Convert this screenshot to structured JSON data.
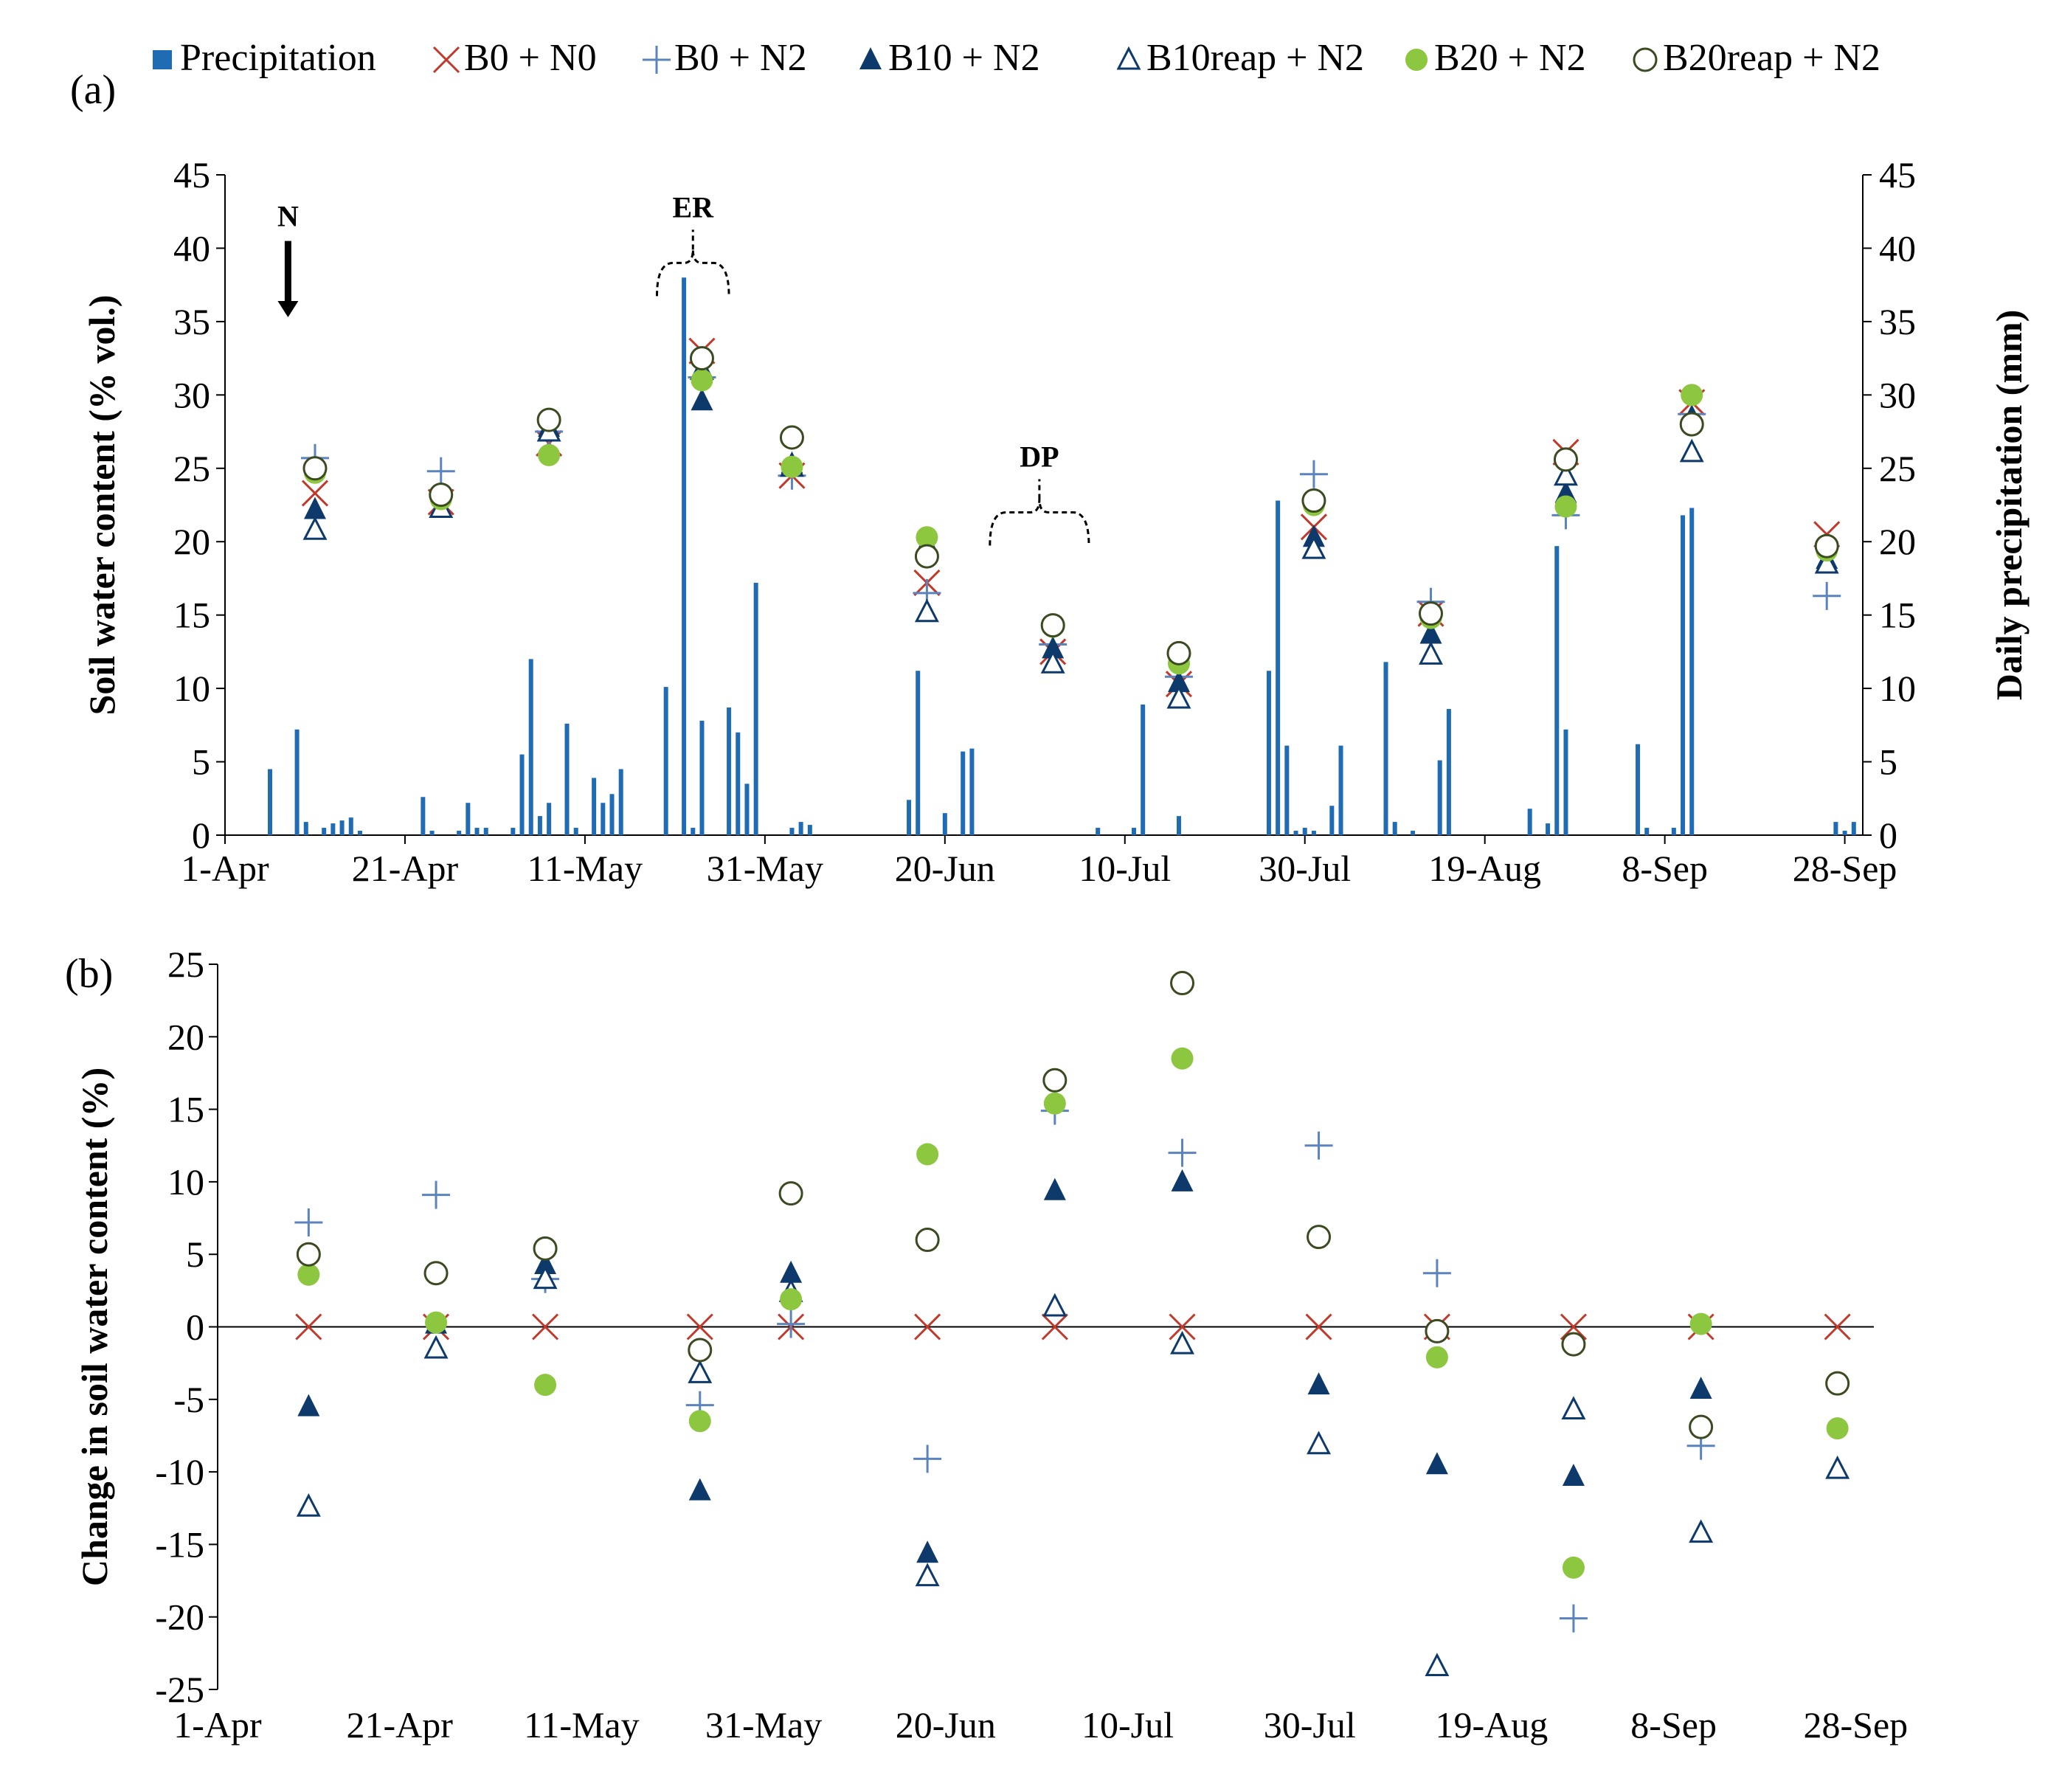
{
  "colors": {
    "precipitation": "#1F6BB4",
    "B0+N0": "#C0392B",
    "B0+N2": "#5B84BF",
    "B10+N2": "#0D3A6B",
    "B10reap+N2": "#0D3A6B",
    "B20+N2": "#8DC63F",
    "B20reap+N2": "#3B4A20",
    "axis": "#000000"
  },
  "chart_data": [
    {
      "panel": "(a)",
      "type": "bar+scatter",
      "ylabel_left": "Soil water content (% vol.)",
      "ylabel_right": "Daily precipitation (mm)",
      "ylim": [
        0,
        45
      ],
      "yticks": [
        "0",
        "5",
        "10",
        "15",
        "20",
        "25",
        "30",
        "35",
        "40",
        "45"
      ],
      "xlim_day": [
        0,
        182
      ],
      "xticks": [
        {
          "day": 0,
          "label": "1-Apr"
        },
        {
          "day": 20,
          "label": "21-Apr"
        },
        {
          "day": 40,
          "label": "11-May"
        },
        {
          "day": 60,
          "label": "31-May"
        },
        {
          "day": 80,
          "label": "20-Jun"
        },
        {
          "day": 100,
          "label": "10-Jul"
        },
        {
          "day": 120,
          "label": "30-Jul"
        },
        {
          "day": 140,
          "label": "19-Aug"
        },
        {
          "day": 160,
          "label": "8-Sep"
        },
        {
          "day": 180,
          "label": "28-Sep"
        }
      ],
      "legend": [
        {
          "key": "Precipitation",
          "label": "Precipitation",
          "marker": "square"
        },
        {
          "key": "B0+N0",
          "label": "B0 + N0",
          "marker": "x"
        },
        {
          "key": "B0+N2",
          "label": "B0 + N2",
          "marker": "plus"
        },
        {
          "key": "B10+N2",
          "label": "B10 + N2",
          "marker": "tri-filled"
        },
        {
          "key": "B10reap+N2",
          "label": "B10reap + N2",
          "marker": "tri-open"
        },
        {
          "key": "B20+N2",
          "label": "B20 + N2",
          "marker": "circle-filled"
        },
        {
          "key": "B20reap+N2",
          "label": "B20reap + N2",
          "marker": "circle-open"
        }
      ],
      "annotations": [
        {
          "label": "N",
          "day": 7,
          "kind": "arrow",
          "value": 42
        },
        {
          "label": "ER",
          "day": 51,
          "kind": "bracket",
          "span": [
            48,
            56
          ],
          "value": 39
        },
        {
          "label": "DP",
          "day": 91,
          "kind": "bracket",
          "span": [
            85,
            96
          ],
          "value": 22
        }
      ],
      "precipitation": [
        {
          "day": 5,
          "mm": 4.5
        },
        {
          "day": 8,
          "mm": 7.2
        },
        {
          "day": 9,
          "mm": 0.9
        },
        {
          "day": 11,
          "mm": 0.5
        },
        {
          "day": 12,
          "mm": 0.8
        },
        {
          "day": 13,
          "mm": 1.0
        },
        {
          "day": 14,
          "mm": 1.2
        },
        {
          "day": 15,
          "mm": 0.3
        },
        {
          "day": 22,
          "mm": 2.6
        },
        {
          "day": 23,
          "mm": 0.3
        },
        {
          "day": 26,
          "mm": 0.3
        },
        {
          "day": 27,
          "mm": 2.2
        },
        {
          "day": 28,
          "mm": 0.5
        },
        {
          "day": 29,
          "mm": 0.5
        },
        {
          "day": 32,
          "mm": 0.5
        },
        {
          "day": 33,
          "mm": 5.5
        },
        {
          "day": 34,
          "mm": 12.0
        },
        {
          "day": 35,
          "mm": 1.3
        },
        {
          "day": 36,
          "mm": 2.2
        },
        {
          "day": 38,
          "mm": 7.6
        },
        {
          "day": 39,
          "mm": 0.5
        },
        {
          "day": 41,
          "mm": 3.9
        },
        {
          "day": 42,
          "mm": 2.2
        },
        {
          "day": 43,
          "mm": 2.8
        },
        {
          "day": 44,
          "mm": 4.5
        },
        {
          "day": 49,
          "mm": 10.1
        },
        {
          "day": 51,
          "mm": 38.0
        },
        {
          "day": 52,
          "mm": 0.5
        },
        {
          "day": 53,
          "mm": 7.8
        },
        {
          "day": 56,
          "mm": 8.7
        },
        {
          "day": 57,
          "mm": 7.0
        },
        {
          "day": 58,
          "mm": 3.5
        },
        {
          "day": 59,
          "mm": 17.2
        },
        {
          "day": 63,
          "mm": 0.5
        },
        {
          "day": 64,
          "mm": 0.9
        },
        {
          "day": 65,
          "mm": 0.7
        },
        {
          "day": 76,
          "mm": 2.4
        },
        {
          "day": 77,
          "mm": 11.2
        },
        {
          "day": 80,
          "mm": 1.5
        },
        {
          "day": 82,
          "mm": 5.7
        },
        {
          "day": 83,
          "mm": 5.9
        },
        {
          "day": 97,
          "mm": 0.5
        },
        {
          "day": 101,
          "mm": 0.5
        },
        {
          "day": 102,
          "mm": 8.9
        },
        {
          "day": 106,
          "mm": 1.3
        },
        {
          "day": 116,
          "mm": 11.2
        },
        {
          "day": 117,
          "mm": 22.8
        },
        {
          "day": 118,
          "mm": 6.1
        },
        {
          "day": 119,
          "mm": 0.3
        },
        {
          "day": 120,
          "mm": 0.5
        },
        {
          "day": 121,
          "mm": 0.3
        },
        {
          "day": 123,
          "mm": 2.0
        },
        {
          "day": 124,
          "mm": 6.1
        },
        {
          "day": 129,
          "mm": 11.8
        },
        {
          "day": 130,
          "mm": 0.9
        },
        {
          "day": 132,
          "mm": 0.3
        },
        {
          "day": 135,
          "mm": 5.1
        },
        {
          "day": 136,
          "mm": 8.6
        },
        {
          "day": 145,
          "mm": 1.8
        },
        {
          "day": 147,
          "mm": 0.8
        },
        {
          "day": 148,
          "mm": 19.7
        },
        {
          "day": 149,
          "mm": 7.2
        },
        {
          "day": 157,
          "mm": 6.2
        },
        {
          "day": 158,
          "mm": 0.5
        },
        {
          "day": 161,
          "mm": 0.5
        },
        {
          "day": 162,
          "mm": 21.8
        },
        {
          "day": 163,
          "mm": 22.3
        },
        {
          "day": 179,
          "mm": 0.9
        },
        {
          "day": 180,
          "mm": 0.3
        },
        {
          "day": 181,
          "mm": 0.9
        }
      ],
      "dates": [
        10,
        24,
        36,
        53,
        63,
        78,
        92,
        106,
        121,
        134,
        149,
        163,
        178
      ],
      "series": [
        {
          "key": "B0+N0",
          "values": [
            23.3,
            22.7,
            26.7,
            33.0,
            24.5,
            17.2,
            12.5,
            10.3,
            21.0,
            15.1,
            26.1,
            29.5,
            20.5
          ]
        },
        {
          "key": "B0+N2",
          "values": [
            25.7,
            24.8,
            27.5,
            31.2,
            24.5,
            16.5,
            13.0,
            10.8,
            24.6,
            15.9,
            21.8,
            28.7,
            16.3
          ]
        },
        {
          "key": "B10+N2",
          "values": [
            22.2,
            22.4,
            27.8,
            29.6,
            25.3,
            19.9,
            12.7,
            10.4,
            20.3,
            13.7,
            23.3,
            28.5,
            18.8
          ]
        },
        {
          "key": "B10reap+N2",
          "values": [
            20.8,
            22.3,
            27.5,
            31.7,
            25.1,
            15.2,
            11.7,
            9.3,
            19.5,
            12.3,
            24.5,
            26.1,
            18.5
          ]
        },
        {
          "key": "B20+N2",
          "values": [
            24.7,
            22.9,
            25.9,
            31.0,
            25.1,
            20.3,
            14.2,
            11.7,
            22.5,
            14.8,
            22.4,
            30.0,
            19.4
          ]
        },
        {
          "key": "B20reap+N2",
          "values": [
            25.0,
            23.2,
            28.3,
            32.5,
            27.1,
            19.0,
            14.3,
            12.4,
            22.8,
            15.1,
            25.6,
            28.0,
            19.7
          ]
        }
      ]
    },
    {
      "panel": "(b)",
      "type": "scatter",
      "ylabel": "Change in soil water content (%)",
      "ylim": [
        -25,
        25
      ],
      "yticks": [
        "-25",
        "-20",
        "-15",
        "-10",
        "-5",
        "0",
        "5",
        "10",
        "15",
        "20",
        "25"
      ],
      "xlim_day": [
        0,
        182
      ],
      "xticks": [
        {
          "day": 0,
          "label": "1-Apr"
        },
        {
          "day": 20,
          "label": "21-Apr"
        },
        {
          "day": 40,
          "label": "11-May"
        },
        {
          "day": 60,
          "label": "31-May"
        },
        {
          "day": 80,
          "label": "20-Jun"
        },
        {
          "day": 100,
          "label": "10-Jul"
        },
        {
          "day": 120,
          "label": "30-Jul"
        },
        {
          "day": 140,
          "label": "19-Aug"
        },
        {
          "day": 160,
          "label": "8-Sep"
        },
        {
          "day": 180,
          "label": "28-Sep"
        }
      ],
      "dates": [
        10,
        24,
        36,
        53,
        63,
        78,
        92,
        106,
        121,
        134,
        149,
        163,
        178
      ],
      "series": [
        {
          "key": "B0+N0",
          "values": [
            0,
            0,
            0,
            0,
            0,
            0,
            0,
            0,
            0,
            0,
            0,
            0,
            0
          ]
        },
        {
          "key": "B0+N2",
          "values": [
            7.2,
            9.1,
            3.3,
            -5.4,
            0.2,
            -9.1,
            14.9,
            12.0,
            12.5,
            3.7,
            -20.1,
            -8.2,
            null
          ]
        },
        {
          "key": "B10+N2",
          "values": [
            -5.5,
            0.2,
            4.3,
            -11.3,
            3.7,
            -15.6,
            9.4,
            10.0,
            -4.0,
            -9.5,
            -10.3,
            -4.3,
            null
          ]
        },
        {
          "key": "B10reap+N2",
          "values": [
            -12.4,
            -1.5,
            3.3,
            -3.2,
            2.4,
            -17.2,
            1.4,
            -1.2,
            -8.1,
            -23.4,
            -5.7,
            -14.2,
            -9.8
          ]
        },
        {
          "key": "B20+N2",
          "values": [
            3.6,
            0.3,
            -4.0,
            -6.5,
            1.9,
            11.9,
            15.4,
            18.5,
            null,
            -2.1,
            -16.6,
            0.2,
            -7.0
          ]
        },
        {
          "key": "B20reap+N2",
          "values": [
            5.0,
            3.7,
            5.4,
            -1.6,
            9.2,
            6.0,
            17.0,
            23.7,
            6.2,
            -0.3,
            -1.2,
            -6.9,
            -3.9
          ]
        }
      ]
    }
  ]
}
